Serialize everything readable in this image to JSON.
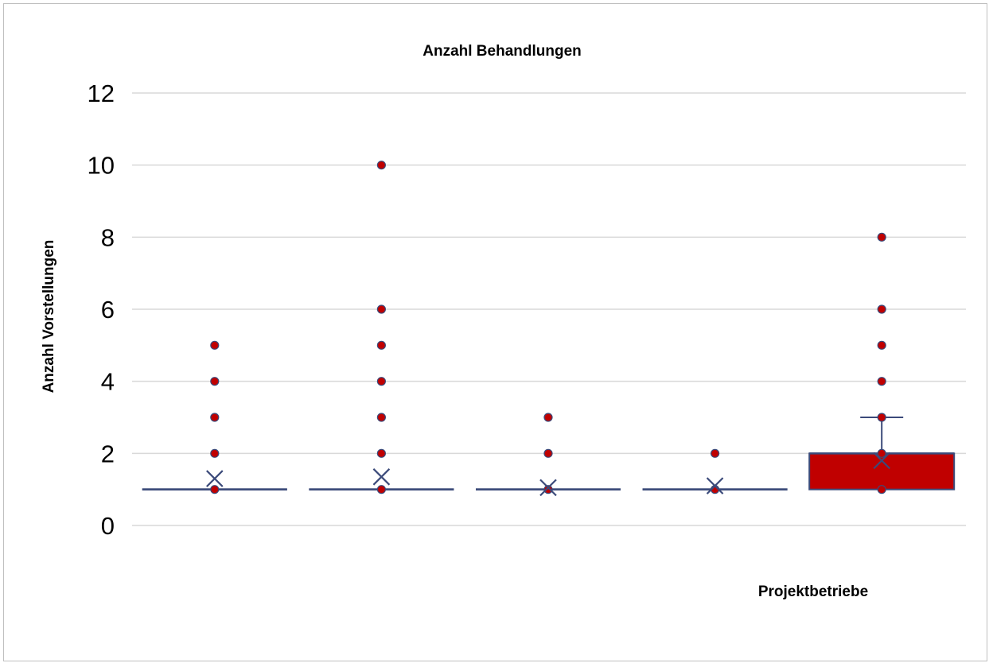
{
  "chart_data": {
    "type": "box",
    "title": "Anzahl Behandlungen",
    "xlabel": "Projektbetriebe",
    "ylabel": "Anzahl Vorstellungen",
    "ylim": [
      0,
      12
    ],
    "yticks": [
      "0",
      "2",
      "4",
      "6",
      "8",
      "10",
      "12"
    ],
    "grid": true,
    "legend": "none",
    "series": [
      {
        "q1": 1,
        "median": 1,
        "q3": 1,
        "whisker_low": 1,
        "whisker_high": 1,
        "mean": 1.3,
        "points": [
          1,
          2,
          3,
          4,
          5
        ]
      },
      {
        "q1": 1,
        "median": 1,
        "q3": 1,
        "whisker_low": 1,
        "whisker_high": 1,
        "mean": 1.35,
        "points": [
          1,
          2,
          3,
          4,
          5,
          6,
          10
        ]
      },
      {
        "q1": 1,
        "median": 1,
        "q3": 1,
        "whisker_low": 1,
        "whisker_high": 1,
        "mean": 1.05,
        "points": [
          1,
          2,
          3
        ]
      },
      {
        "q1": 1,
        "median": 1,
        "q3": 1,
        "whisker_low": 1,
        "whisker_high": 1,
        "mean": 1.1,
        "points": [
          1,
          2
        ]
      },
      {
        "q1": 1,
        "median": 2,
        "q3": 2,
        "whisker_low": 1,
        "whisker_high": 3,
        "mean": 1.8,
        "points": [
          1,
          2,
          3,
          4,
          5,
          6,
          8
        ],
        "fill": "#c00000"
      }
    ],
    "colors": {
      "box_edge": "#3b4a7a",
      "point": "#c00000",
      "grid": "#d9d9d9",
      "mean_marker": "#3b4a7a"
    }
  }
}
